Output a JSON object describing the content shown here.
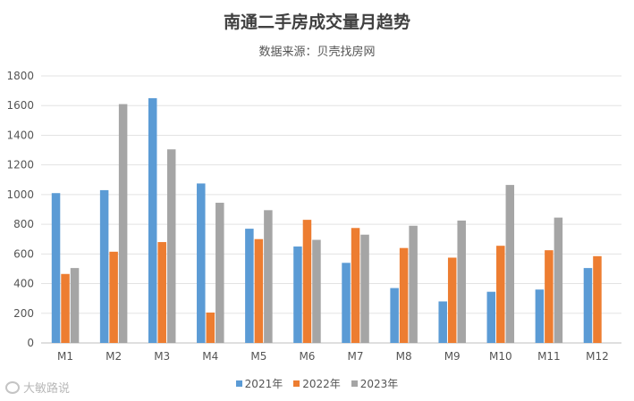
{
  "chart_data": {
    "type": "bar",
    "title": "南通二手房成交量月趋势",
    "subtitle": "数据来源：贝壳找房网",
    "categories": [
      "M1",
      "M2",
      "M3",
      "M4",
      "M5",
      "M6",
      "M7",
      "M8",
      "M9",
      "M10",
      "M11",
      "M12"
    ],
    "series": [
      {
        "name": "2021年",
        "color": "#5b9bd5",
        "values": [
          1010,
          1030,
          1650,
          1075,
          770,
          650,
          540,
          370,
          280,
          345,
          360,
          505
        ]
      },
      {
        "name": "2022年",
        "color": "#ed7d31",
        "values": [
          465,
          615,
          680,
          205,
          700,
          830,
          775,
          640,
          575,
          655,
          625,
          585
        ]
      },
      {
        "name": "2023年",
        "color": "#a5a5a5",
        "values": [
          505,
          1610,
          1305,
          945,
          895,
          695,
          730,
          790,
          825,
          1065,
          845,
          null
        ]
      }
    ],
    "ylim": [
      0,
      1800
    ],
    "yticks": [
      0,
      200,
      400,
      600,
      800,
      1000,
      1200,
      1400,
      1600,
      1800
    ],
    "xlabel": "",
    "ylabel": "",
    "grid": true,
    "legend": "bottom"
  },
  "watermark": {
    "text": "大敏路说",
    "icon": "quote-icon"
  }
}
